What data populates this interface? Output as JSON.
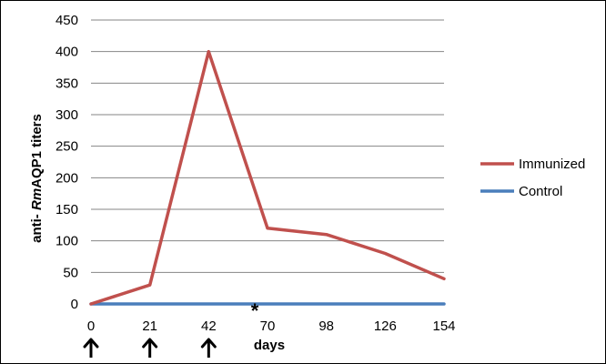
{
  "chart_data": {
    "type": "line",
    "categories": [
      "0",
      "21",
      "42",
      "70",
      "98",
      "126",
      "154"
    ],
    "series": [
      {
        "name": "Immunized",
        "color": "#c0504d",
        "values": [
          0,
          30,
          400,
          120,
          110,
          80,
          40
        ]
      },
      {
        "name": "Control",
        "color": "#4a7ebb",
        "values": [
          0,
          0,
          0,
          0,
          0,
          0,
          0
        ]
      }
    ],
    "ylim": [
      0,
      450
    ],
    "yticks": [
      0,
      50,
      100,
      150,
      200,
      250,
      300,
      350,
      400,
      450
    ],
    "ylabel_prefix": "anti- ",
    "ylabel_italic": "Rm",
    "ylabel_suffix": "AQP1 titers",
    "xlabel": "days",
    "grid": true,
    "legend_position": "right",
    "annotations": [
      {
        "text": "*",
        "between": [
          2,
          3
        ]
      }
    ],
    "arrow_markers_at_categories": [
      0,
      1,
      2
    ]
  }
}
